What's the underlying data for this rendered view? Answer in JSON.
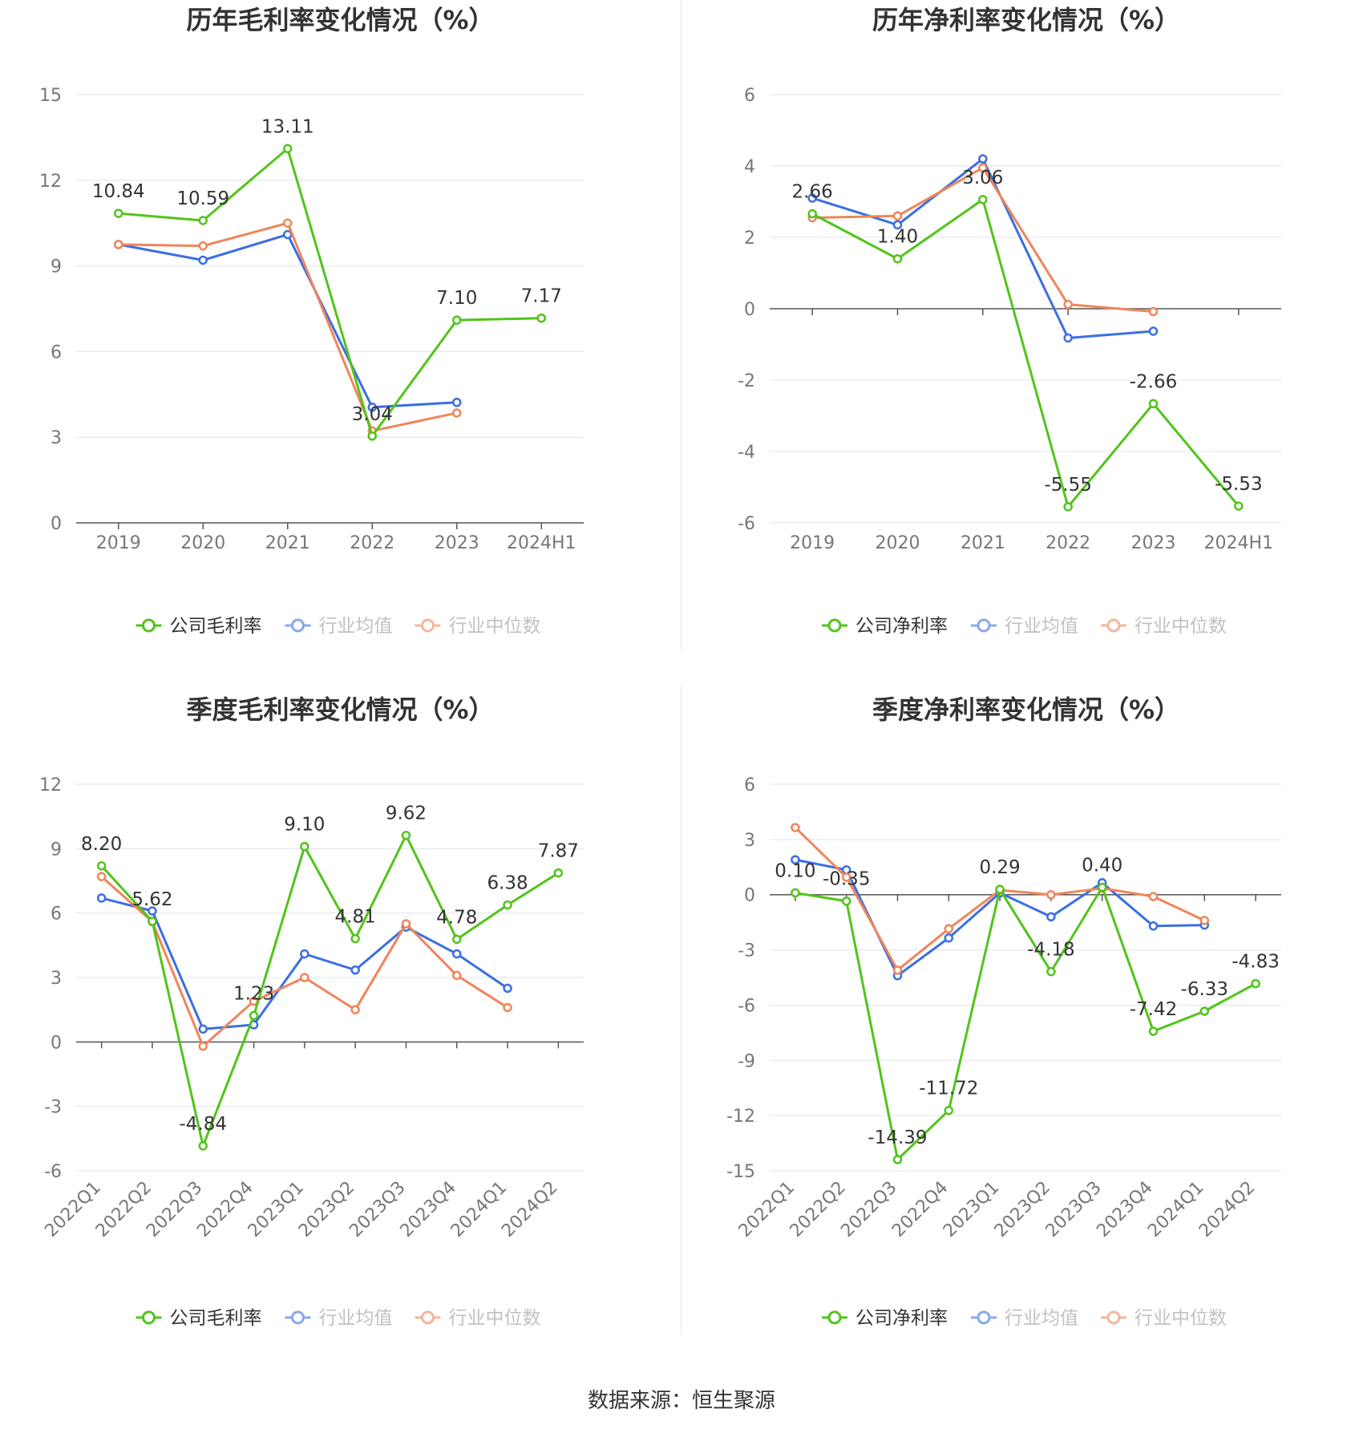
{
  "source_note": "数据来源：恒生聚源",
  "colors": {
    "company": "#52c41a",
    "industry_avg": "#3a6fe0",
    "industry_median": "#f0855a",
    "grid": "#e0e3ef",
    "axis": "#555555",
    "tick_label": "#777777",
    "title": "#333333"
  },
  "chart_data": [
    {
      "type": "line",
      "title": "历年毛利率变化情况（%）",
      "categories": [
        "2019",
        "2020",
        "2021",
        "2022",
        "2023",
        "2024H1"
      ],
      "ylim": [
        0,
        15
      ],
      "yticks": [
        0,
        3,
        6,
        9,
        12,
        15
      ],
      "x_rotated": false,
      "grid": true,
      "legend_position": "bottom",
      "series": [
        {
          "name": "公司毛利率",
          "key": "company",
          "values": [
            10.84,
            10.59,
            13.11,
            3.04,
            7.1,
            7.17
          ],
          "labels": [
            "10.84",
            "10.59",
            "13.11",
            "3.04",
            "7.10",
            "7.17"
          ]
        },
        {
          "name": "行业均值",
          "key": "industry_avg",
          "values": [
            9.75,
            9.2,
            10.1,
            4.05,
            4.22,
            null
          ]
        },
        {
          "name": "行业中位数",
          "key": "industry_median",
          "values": [
            9.75,
            9.7,
            10.5,
            3.22,
            3.85,
            null
          ]
        }
      ]
    },
    {
      "type": "line",
      "title": "历年净利率变化情况（%）",
      "categories": [
        "2019",
        "2020",
        "2021",
        "2022",
        "2023",
        "2024H1"
      ],
      "ylim": [
        -6,
        6
      ],
      "yticks": [
        -6,
        -4,
        -2,
        0,
        2,
        4,
        6
      ],
      "x_rotated": false,
      "grid": true,
      "legend_position": "bottom",
      "series": [
        {
          "name": "公司净利率",
          "key": "company",
          "values": [
            2.66,
            1.4,
            3.06,
            -5.55,
            -2.66,
            -5.53
          ],
          "labels": [
            "2.66",
            "1.40",
            "3.06",
            "-5.55",
            "-2.66",
            "-5.53"
          ]
        },
        {
          "name": "行业均值",
          "key": "industry_avg",
          "values": [
            3.1,
            2.35,
            4.2,
            -0.82,
            -0.63,
            null
          ]
        },
        {
          "name": "行业中位数",
          "key": "industry_median",
          "values": [
            2.55,
            2.6,
            3.95,
            0.12,
            -0.08,
            null
          ]
        }
      ]
    },
    {
      "type": "line",
      "title": "季度毛利率变化情况（%）",
      "categories": [
        "2022Q1",
        "2022Q2",
        "2022Q3",
        "2022Q4",
        "2023Q1",
        "2023Q2",
        "2023Q3",
        "2023Q4",
        "2024Q1",
        "2024Q2"
      ],
      "ylim": [
        -6,
        12
      ],
      "yticks": [
        -6,
        -3,
        0,
        3,
        6,
        9,
        12
      ],
      "x_rotated": true,
      "grid": true,
      "legend_position": "bottom",
      "series": [
        {
          "name": "公司毛利率",
          "key": "company",
          "values": [
            8.2,
            5.62,
            -4.84,
            1.23,
            9.1,
            4.81,
            9.62,
            4.78,
            6.38,
            7.87
          ],
          "labels": [
            "8.20",
            "5.62",
            "-4.84",
            "1.23",
            "9.10",
            "4.81",
            "9.62",
            "4.78",
            "6.38",
            "7.87"
          ]
        },
        {
          "name": "行业均值",
          "key": "industry_avg",
          "values": [
            6.7,
            6.1,
            0.6,
            0.8,
            4.1,
            3.35,
            5.35,
            4.1,
            2.5,
            null
          ]
        },
        {
          "name": "行业中位数",
          "key": "industry_median",
          "values": [
            7.7,
            5.6,
            -0.2,
            1.9,
            3.0,
            1.5,
            5.5,
            3.1,
            1.6,
            null
          ]
        }
      ]
    },
    {
      "type": "line",
      "title": "季度净利率变化情况（%）",
      "categories": [
        "2022Q1",
        "2022Q2",
        "2022Q3",
        "2022Q4",
        "2023Q1",
        "2023Q2",
        "2023Q3",
        "2023Q4",
        "2024Q1",
        "2024Q2"
      ],
      "ylim": [
        -15,
        6
      ],
      "yticks": [
        -15,
        -12,
        -9,
        -6,
        -3,
        0,
        3,
        6
      ],
      "x_rotated": true,
      "grid": true,
      "legend_position": "bottom",
      "series": [
        {
          "name": "公司净利率",
          "key": "company",
          "values": [
            0.1,
            -0.35,
            -14.39,
            -11.72,
            0.29,
            -4.18,
            0.4,
            -7.42,
            -6.33,
            -4.83
          ],
          "labels": [
            "0.10",
            "-0.35",
            "-14.39",
            "-11.72",
            "0.29",
            "-4.18",
            "0.40",
            "-7.42",
            "-6.33",
            "-4.83"
          ]
        },
        {
          "name": "行业均值",
          "key": "industry_avg",
          "values": [
            1.9,
            1.35,
            -4.4,
            -2.35,
            0.1,
            -1.2,
            0.65,
            -1.7,
            -1.65,
            null
          ]
        },
        {
          "name": "行业中位数",
          "key": "industry_median",
          "values": [
            3.65,
            0.95,
            -4.1,
            -1.85,
            0.25,
            0.0,
            0.35,
            -0.1,
            -1.4,
            null
          ]
        }
      ]
    }
  ]
}
